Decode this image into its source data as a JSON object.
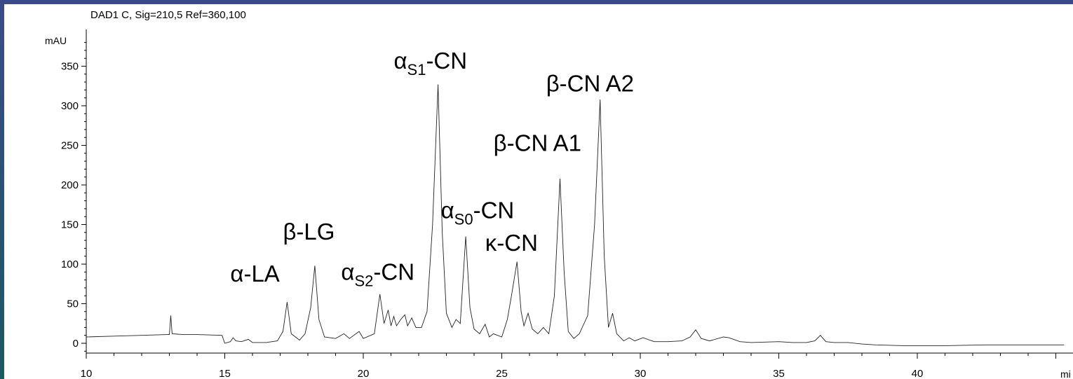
{
  "chart_data": {
    "type": "line",
    "title": "DAD1 C, Sig=210,5 Ref=360,100",
    "ylabel": "mAU",
    "xlabel": "mi",
    "xlim": [
      10,
      45.3
    ],
    "ylim": [
      -10,
      390
    ],
    "x_ticks": [
      10,
      15,
      20,
      25,
      30,
      35,
      40
    ],
    "y_ticks": [
      0,
      50,
      100,
      150,
      200,
      250,
      300,
      350
    ],
    "grid": false,
    "series": [
      {
        "points": [
          [
            10.0,
            8
          ],
          [
            11.0,
            9
          ],
          [
            12.0,
            10
          ],
          [
            12.9,
            11
          ],
          [
            13.0,
            11
          ],
          [
            13.05,
            35
          ],
          [
            13.1,
            12
          ],
          [
            13.5,
            11
          ],
          [
            14.0,
            11
          ],
          [
            14.9,
            10
          ],
          [
            15.0,
            0
          ],
          [
            15.2,
            2
          ],
          [
            15.3,
            7
          ],
          [
            15.4,
            3
          ],
          [
            15.6,
            2
          ],
          [
            15.85,
            5
          ],
          [
            16.0,
            1
          ],
          [
            16.5,
            1
          ],
          [
            16.9,
            3
          ],
          [
            17.1,
            15
          ],
          [
            17.25,
            52
          ],
          [
            17.4,
            12
          ],
          [
            17.7,
            4
          ],
          [
            17.9,
            12
          ],
          [
            18.1,
            45
          ],
          [
            18.25,
            98
          ],
          [
            18.4,
            30
          ],
          [
            18.6,
            8
          ],
          [
            19.0,
            6
          ],
          [
            19.3,
            12
          ],
          [
            19.5,
            6
          ],
          [
            19.85,
            15
          ],
          [
            20.0,
            6
          ],
          [
            20.4,
            12
          ],
          [
            20.6,
            62
          ],
          [
            20.75,
            25
          ],
          [
            20.9,
            42
          ],
          [
            21.0,
            22
          ],
          [
            21.1,
            34
          ],
          [
            21.2,
            22
          ],
          [
            21.35,
            30
          ],
          [
            21.5,
            36
          ],
          [
            21.6,
            22
          ],
          [
            21.75,
            32
          ],
          [
            21.9,
            20
          ],
          [
            22.1,
            20
          ],
          [
            22.3,
            40
          ],
          [
            22.5,
            150
          ],
          [
            22.7,
            327
          ],
          [
            22.85,
            140
          ],
          [
            23.0,
            38
          ],
          [
            23.2,
            20
          ],
          [
            23.35,
            30
          ],
          [
            23.5,
            25
          ],
          [
            23.7,
            135
          ],
          [
            23.85,
            45
          ],
          [
            24.0,
            18
          ],
          [
            24.2,
            12
          ],
          [
            24.4,
            24
          ],
          [
            24.55,
            8
          ],
          [
            24.7,
            12
          ],
          [
            25.0,
            8
          ],
          [
            25.2,
            30
          ],
          [
            25.35,
            60
          ],
          [
            25.55,
            103
          ],
          [
            25.7,
            40
          ],
          [
            25.8,
            22
          ],
          [
            25.95,
            38
          ],
          [
            26.1,
            18
          ],
          [
            26.3,
            12
          ],
          [
            26.5,
            20
          ],
          [
            26.7,
            12
          ],
          [
            26.9,
            60
          ],
          [
            27.1,
            208
          ],
          [
            27.25,
            90
          ],
          [
            27.4,
            15
          ],
          [
            27.6,
            6
          ],
          [
            27.8,
            12
          ],
          [
            28.1,
            35
          ],
          [
            28.35,
            150
          ],
          [
            28.55,
            308
          ],
          [
            28.7,
            110
          ],
          [
            28.85,
            20
          ],
          [
            29.0,
            38
          ],
          [
            29.15,
            12
          ],
          [
            29.4,
            3
          ],
          [
            29.6,
            7
          ],
          [
            29.8,
            3
          ],
          [
            30.1,
            7
          ],
          [
            30.5,
            2
          ],
          [
            31.0,
            2
          ],
          [
            31.5,
            3
          ],
          [
            31.8,
            8
          ],
          [
            32.0,
            17
          ],
          [
            32.2,
            6
          ],
          [
            32.5,
            3
          ],
          [
            33.0,
            8
          ],
          [
            33.2,
            7
          ],
          [
            33.6,
            2
          ],
          [
            34.0,
            1
          ],
          [
            35.0,
            2
          ],
          [
            35.5,
            1
          ],
          [
            36.0,
            1
          ],
          [
            36.3,
            3
          ],
          [
            36.5,
            10
          ],
          [
            36.7,
            2
          ],
          [
            37.0,
            1
          ],
          [
            37.5,
            1
          ],
          [
            38.0,
            -1
          ],
          [
            38.5,
            -2
          ],
          [
            39.5,
            -3
          ],
          [
            41.0,
            -3
          ],
          [
            42.5,
            -2
          ],
          [
            44.0,
            -2
          ],
          [
            45.3,
            -2
          ]
        ]
      }
    ],
    "annotations": [
      {
        "base": "α",
        "sub": "",
        "rest": "-LA",
        "x": 15.2,
        "y": 78
      },
      {
        "base": "β",
        "sub": "",
        "rest": "-LG",
        "x": 17.1,
        "y": 131
      },
      {
        "base": "α",
        "sub": "S2",
        "rest": "-CN",
        "x": 19.2,
        "y": 80
      },
      {
        "base": "α",
        "sub": "S1",
        "rest": "-CN",
        "x": 21.1,
        "y": 347
      },
      {
        "base": "α",
        "sub": "S0",
        "rest": "-CN",
        "x": 22.8,
        "y": 158
      },
      {
        "base": "κ",
        "sub": "",
        "rest": "-CN",
        "x": 24.4,
        "y": 117
      },
      {
        "base": "β",
        "sub": "",
        "rest": "-CN A1",
        "x": 24.7,
        "y": 243
      },
      {
        "base": "β",
        "sub": "",
        "rest": "-CN A2",
        "x": 26.6,
        "y": 318
      }
    ]
  }
}
